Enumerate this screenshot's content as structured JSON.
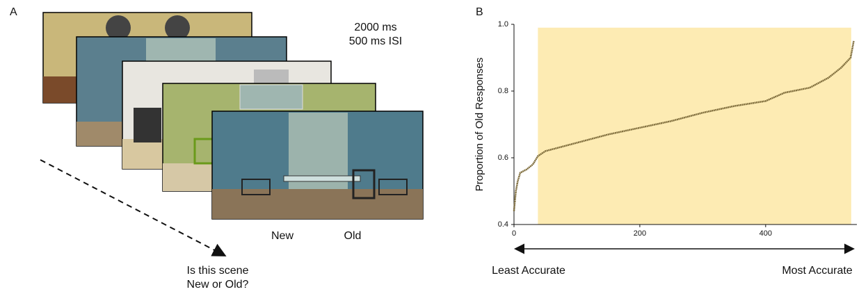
{
  "panel_a": {
    "label": "A",
    "timing": [
      "2000 ms",
      "500 ms ISI"
    ],
    "options": [
      "New",
      "Old"
    ],
    "question": [
      "Is this scene",
      "New or Old?"
    ]
  },
  "chart_data": {
    "type": "line",
    "panel_label": "B",
    "ylabel": "Proportion of Old Responses",
    "x": [
      0,
      3,
      6,
      10,
      20,
      30,
      38,
      50,
      100,
      150,
      200,
      250,
      300,
      350,
      400,
      430,
      470,
      500,
      520,
      535,
      540
    ],
    "values": [
      0.44,
      0.5,
      0.53,
      0.555,
      0.565,
      0.58,
      0.605,
      0.62,
      0.645,
      0.67,
      0.69,
      0.71,
      0.735,
      0.755,
      0.77,
      0.795,
      0.81,
      0.84,
      0.87,
      0.9,
      0.95
    ],
    "color": "#7d6b3a",
    "xlim": [
      0,
      545
    ],
    "ylim": [
      0.4,
      1.0
    ],
    "xticks": [
      0,
      200,
      400
    ],
    "yticks": [
      0.4,
      0.6,
      0.8,
      {
        "value": 1,
        "label": "1.0"
      }
    ],
    "highlight": {
      "x": [
        38,
        536
      ],
      "y": [
        0.4,
        0.99
      ],
      "color": "#fdebb3"
    },
    "annotations": [
      "Least Accurate",
      "Most Accurate"
    ]
  }
}
